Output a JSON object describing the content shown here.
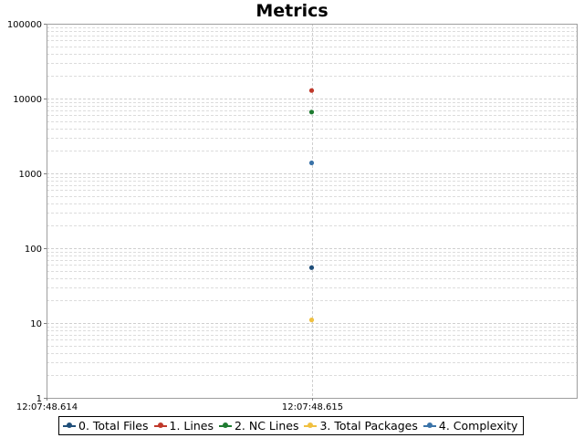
{
  "chart_data": {
    "type": "scatter",
    "title": "Metrics",
    "xlabel": "",
    "ylabel": "",
    "y_scale": "log",
    "ylim": [
      1,
      100000
    ],
    "y_ticks": [
      "1",
      "10",
      "100",
      "1000",
      "10000",
      "100000"
    ],
    "x_ticks": [
      "12:07:48.614",
      "12:07:48.615"
    ],
    "xlim": [
      "12:07:48.614",
      "12:07:48.616"
    ],
    "grid": true,
    "legend_position": "bottom",
    "series": [
      {
        "name": "0. Total Files",
        "color": "#1f4e79",
        "points": [
          {
            "x": "12:07:48.615",
            "y": 55
          }
        ]
      },
      {
        "name": "1. Lines",
        "color": "#c0392b",
        "points": [
          {
            "x": "12:07:48.615",
            "y": 12800
          }
        ]
      },
      {
        "name": "2. NC Lines",
        "color": "#1e7b30",
        "points": [
          {
            "x": "12:07:48.615",
            "y": 6600
          }
        ]
      },
      {
        "name": "3. Total Packages",
        "color": "#f0c040",
        "points": [
          {
            "x": "12:07:48.615",
            "y": 11
          }
        ]
      },
      {
        "name": "4. Complexity",
        "color": "#3a73a8",
        "points": [
          {
            "x": "12:07:48.615",
            "y": 1380
          }
        ]
      }
    ]
  }
}
